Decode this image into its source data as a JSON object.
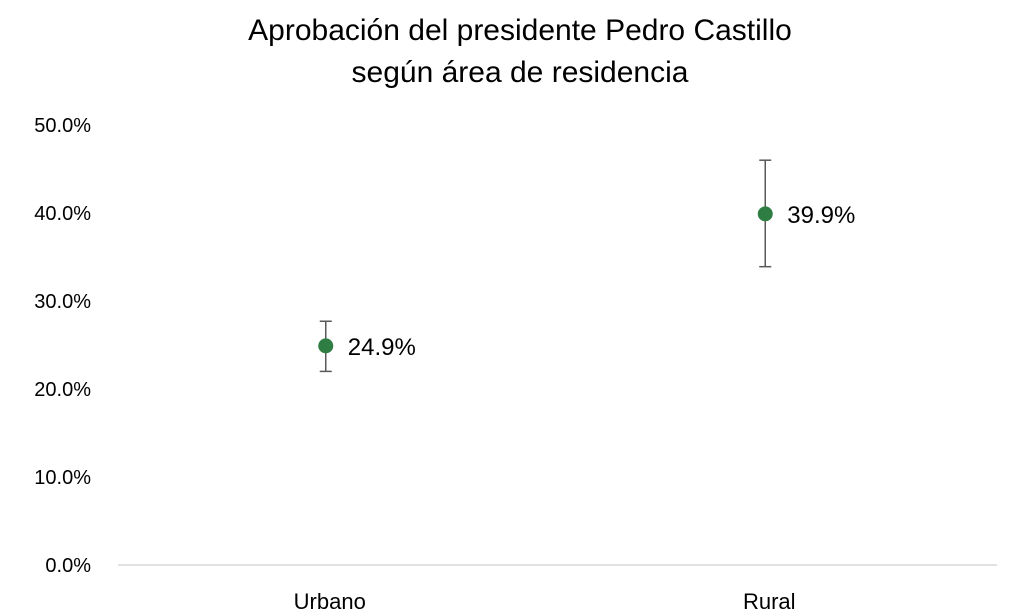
{
  "chart_data": {
    "type": "scatter",
    "title": "Aprobación del presidente Pedro Castillo",
    "subtitle": "según área de residencia",
    "categories": [
      "Urbano",
      "Rural"
    ],
    "values": [
      24.9,
      39.9
    ],
    "data_labels": [
      "24.9%",
      "39.9%"
    ],
    "error_bars": [
      {
        "low": 22.0,
        "high": 27.7
      },
      {
        "low": 33.9,
        "high": 46.0
      }
    ],
    "ylim": [
      0,
      50
    ],
    "y_ticks": [
      0,
      10,
      20,
      30,
      40,
      50
    ],
    "y_tick_labels": [
      "0.0%",
      "10.0%",
      "20.0%",
      "30.0%",
      "40.0%",
      "50.0%"
    ],
    "xlabel": "",
    "ylabel": "",
    "grid": false,
    "legend": "none",
    "point_color": "#2e7d43",
    "error_bar_color": "#595959",
    "axis_color": "#d9d9d9"
  }
}
